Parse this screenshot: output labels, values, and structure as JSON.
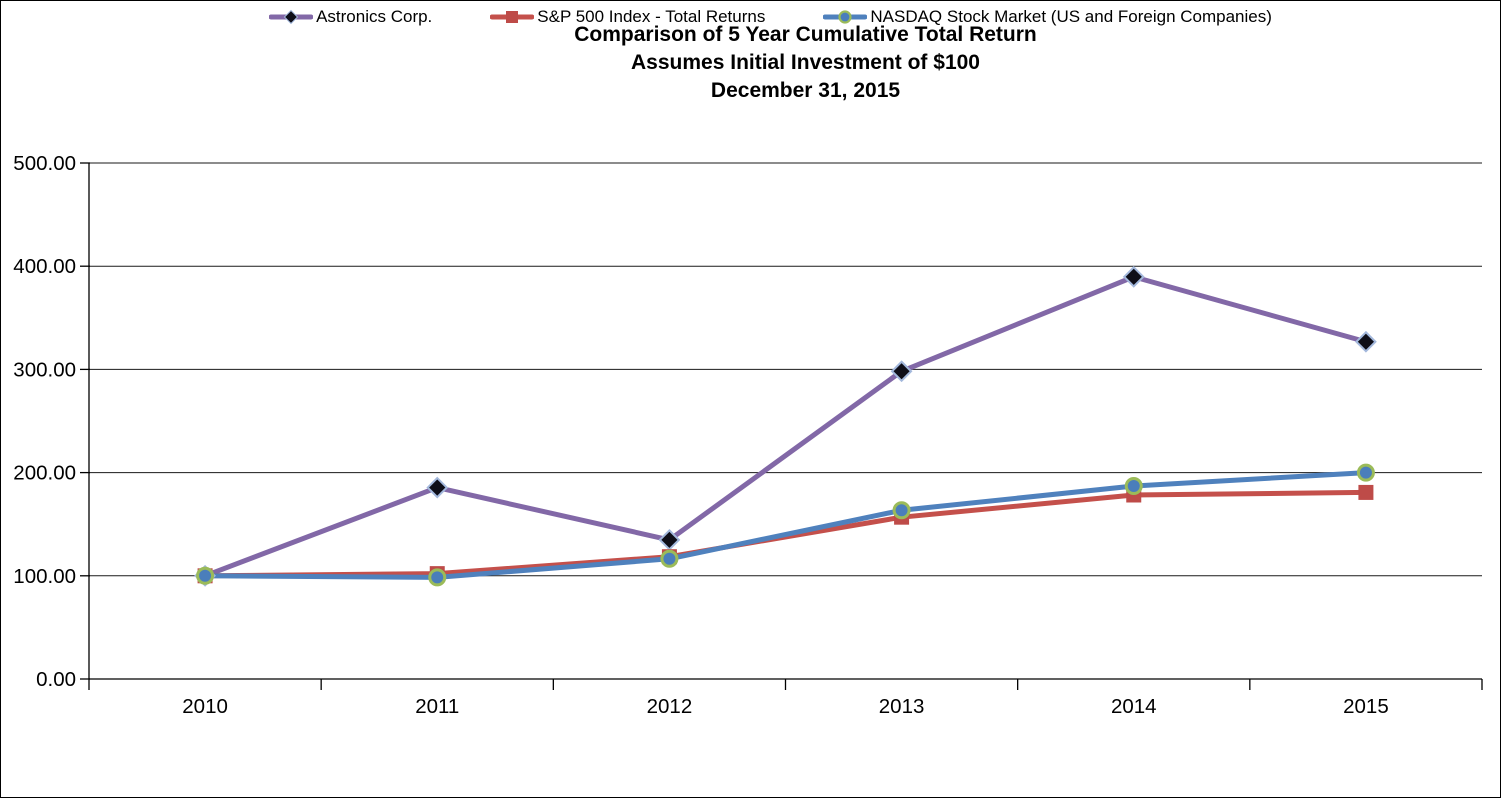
{
  "title": {
    "line1": "Comparison of 5 Year Cumulative Total Return",
    "line2": "Assumes Initial Investment of $100",
    "line3": "December 31, 2015"
  },
  "chart_data": {
    "type": "line",
    "title": "Comparison of 5 Year Cumulative Total Return Assumes Initial Investment of $100 December 31, 2015",
    "xlabel": "",
    "ylabel": "",
    "categories": [
      "2010",
      "2011",
      "2012",
      "2013",
      "2014",
      "2015"
    ],
    "series": [
      {
        "id": "astronics",
        "name": "Astronics Corp.",
        "color": "#8268A7",
        "marker": "diamond",
        "marker_fill": "#0E0E18",
        "marker_stroke": "#A3B8DC",
        "values": [
          100.0,
          185.5,
          134.8,
          298.2,
          389.7,
          326.8
        ]
      },
      {
        "id": "sp500",
        "name": "S&P 500 Index - Total Returns",
        "color": "#C4504B",
        "marker": "square",
        "marker_fill": "#BE4B48",
        "marker_stroke": "none",
        "values": [
          100.0,
          102.1,
          118.5,
          156.8,
          178.3,
          180.8
        ]
      },
      {
        "id": "nasdaq",
        "name": "NASDAQ Stock Market (US and Foreign Companies)",
        "color": "#4F81BD",
        "marker": "circle",
        "marker_fill": "#4A7EBB",
        "marker_stroke": "#9BBB59",
        "values": [
          100.0,
          98.5,
          116.5,
          163.5,
          187.0,
          200.0
        ]
      }
    ],
    "ylim": [
      0,
      500
    ],
    "yticks": [
      {
        "value": 0,
        "label": "0.00"
      },
      {
        "value": 100,
        "label": "100.00"
      },
      {
        "value": 200,
        "label": "200.00"
      },
      {
        "value": 300,
        "label": "300.00"
      },
      {
        "value": 400,
        "label": "400.00"
      },
      {
        "value": 500,
        "label": "500.00"
      }
    ],
    "grid": "horizontal",
    "legend_position": "bottom",
    "axis_color": "#000000",
    "gridline_color": "#1A1A1A"
  }
}
